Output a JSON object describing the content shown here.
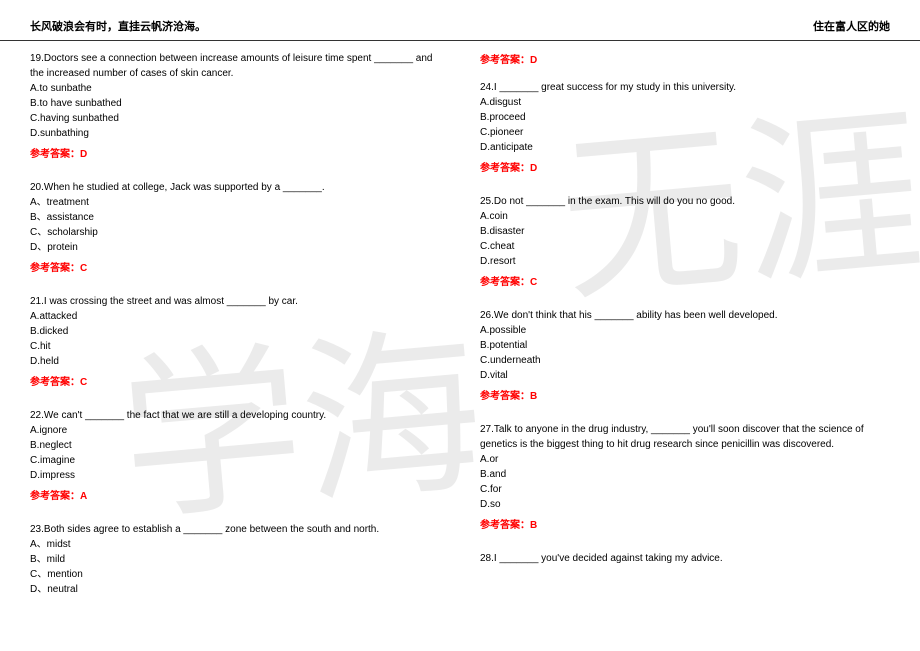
{
  "header": {
    "left": "长风破浪会有时，直挂云帆济沧海。",
    "right": "住在富人区的她"
  },
  "watermarks": {
    "wm1": "学海",
    "wm2": "无涯"
  },
  "left_col": [
    {
      "num": "19.",
      "text": "Doctors see a connection between increase amounts of leisure time spent _______ and the increased number of cases of skin cancer.",
      "options": [
        "A.to sunbathe",
        "B.to have sunbathed",
        "C.having sunbathed",
        "D.sunbathing"
      ],
      "answer": "参考答案：D"
    },
    {
      "num": "20.",
      "text": "When he studied at college, Jack was supported by a _______.",
      "options": [
        "A、treatment",
        "B、assistance",
        "C、scholarship",
        "D、protein"
      ],
      "answer": "参考答案：C"
    },
    {
      "num": "21.",
      "text": "I was crossing the street and was almost _______ by car.",
      "options": [
        "A.attacked",
        "B.dicked",
        "C.hit",
        "D.held"
      ],
      "answer": "参考答案：C"
    },
    {
      "num": "22.",
      "text": "We can't _______ the fact that we are still a developing country.",
      "options": [
        "A.ignore",
        "B.neglect",
        "C.imagine",
        "D.impress"
      ],
      "answer": "参考答案：A"
    },
    {
      "num": "23.",
      "text": "Both sides agree to establish a _______ zone between the south and north.",
      "options": [
        "A、midst",
        "B、mild",
        "C、mention",
        "D、neutral"
      ],
      "answer": ""
    }
  ],
  "right_col_top_answer": "参考答案：D",
  "right_col": [
    {
      "num": "24.",
      "text": "I _______ great success for my study in this university.",
      "options": [
        "A.disgust",
        "B.proceed",
        "C.pioneer",
        "D.anticipate"
      ],
      "answer": "参考答案：D"
    },
    {
      "num": "25.",
      "text": "Do not _______ in the exam. This will do you no good.",
      "options": [
        "A.coin",
        "B.disaster",
        "C.cheat",
        "D.resort"
      ],
      "answer": "参考答案：C"
    },
    {
      "num": "26.",
      "text": "We don't think that his _______ ability has been well developed.",
      "options": [
        "A.possible",
        "B.potential",
        "C.underneath",
        "D.vital"
      ],
      "answer": "参考答案：B"
    },
    {
      "num": "27.",
      "text": "Talk to anyone in the drug industry, _______ you'll soon discover that the science of genetics is the biggest thing to hit drug research since penicillin was discovered.",
      "options": [
        "A.or",
        "B.and",
        "C.for",
        "D.so"
      ],
      "answer": "参考答案：B"
    },
    {
      "num": "28.",
      "text": "I _______ you've decided against taking my advice.",
      "options": [],
      "answer": ""
    }
  ]
}
